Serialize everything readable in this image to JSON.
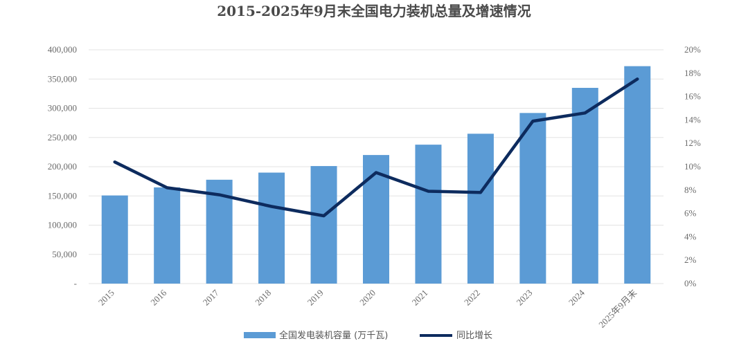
{
  "chart_data": {
    "type": "bar",
    "title": "2015-2025年9月末全国电力装机总量及增速情况",
    "categories": [
      "2015",
      "2016",
      "2017",
      "2018",
      "2019",
      "2020",
      "2021",
      "2022",
      "2023",
      "2024",
      "2025年9月末"
    ],
    "series": [
      {
        "name": "全国发电装机容量 (万千瓦)",
        "type": "bar",
        "axis": "left",
        "color": "#5b9bd5",
        "values": [
          150800,
          164600,
          177700,
          189900,
          201100,
          220000,
          237700,
          256400,
          291900,
          334900,
          372000
        ]
      },
      {
        "name": "同比增长",
        "type": "line",
        "axis": "right",
        "color": "#0d2b5e",
        "values": [
          10.4,
          8.2,
          7.6,
          6.6,
          5.8,
          9.5,
          7.9,
          7.8,
          13.9,
          14.6,
          17.5
        ]
      }
    ],
    "y_left": {
      "min": 0,
      "max": 400000,
      "ticks": [
        0,
        50000,
        100000,
        150000,
        200000,
        250000,
        300000,
        350000,
        400000
      ],
      "tick_labels": [
        "-",
        "50,000",
        "100,000",
        "150,000",
        "200,000",
        "250,000",
        "300,000",
        "350,000",
        "400,000"
      ]
    },
    "y_right": {
      "min": 0,
      "max": 20,
      "ticks": [
        0,
        2,
        4,
        6,
        8,
        10,
        12,
        14,
        16,
        18,
        20
      ],
      "tick_labels": [
        "0%",
        "2%",
        "4%",
        "6%",
        "8%",
        "10%",
        "12%",
        "14%",
        "16%",
        "18%",
        "20%"
      ]
    },
    "grid": true,
    "legend_position": "bottom"
  }
}
